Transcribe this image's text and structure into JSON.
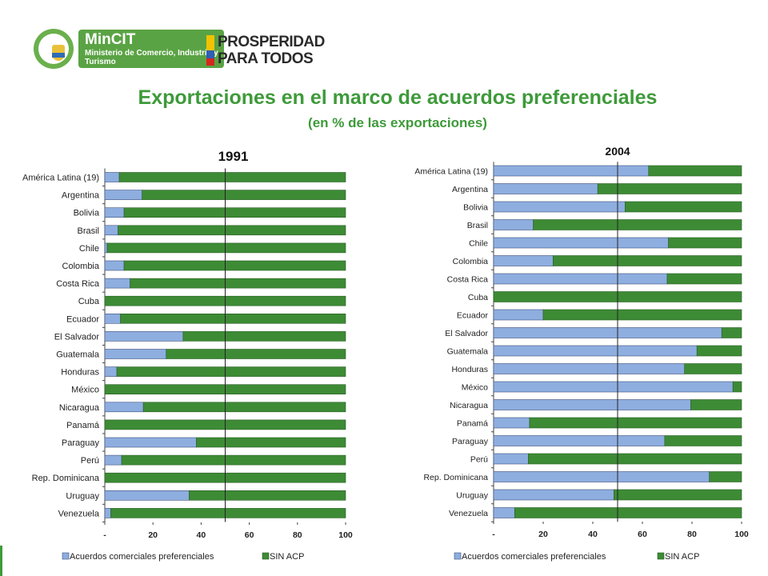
{
  "header": {
    "mincit_title": "MinCIT",
    "mincit_subtitle": "Ministerio de Comercio, Industria y Turismo",
    "prosperidad_line1": "PROSPERIDAD",
    "prosperidad_line2": "PARA TODOS"
  },
  "title": "Exportaciones en el marco de acuerdos preferenciales",
  "subtitle": "(en % de las exportaciones)",
  "colors": {
    "blue": "#8eaee0",
    "green": "#3d8b35",
    "title_green": "#3e9a3a"
  },
  "chart_data": [
    {
      "type": "bar",
      "orientation": "horizontal",
      "stacked": true,
      "title": "1991",
      "categories": [
        "América Latina (19)",
        "Argentina",
        "Bolivia",
        "Brasil",
        "Chile",
        "Colombia",
        "Costa Rica",
        "Cuba",
        "Ecuador",
        "El Salvador",
        "Guatemala",
        "Honduras",
        "México",
        "Nicaragua",
        "Panamá",
        "Paraguay",
        "Perú",
        "Rep. Dominicana",
        "Uruguay",
        "Venezuela"
      ],
      "series": [
        {
          "name": "Acuerdos comerciales preferenciales",
          "values": [
            6,
            15.5,
            8,
            5.5,
            1,
            8,
            10.5,
            0,
            6.5,
            32.5,
            25.5,
            5,
            0,
            16,
            0,
            38,
            7,
            0,
            35,
            2.5
          ]
        },
        {
          "name": "SIN ACP",
          "values": [
            94,
            84.5,
            92,
            94.5,
            99,
            92,
            89.5,
            100,
            93.5,
            67.5,
            74.5,
            95,
            100,
            84,
            100,
            62,
            93,
            100,
            65,
            97.5
          ]
        }
      ],
      "xlim": [
        0,
        100
      ],
      "xticks": [
        "-",
        "20",
        "40",
        "60",
        "80",
        "100"
      ],
      "grid": "vertical",
      "legend": "bottom"
    },
    {
      "type": "bar",
      "orientation": "horizontal",
      "stacked": true,
      "title": "2004",
      "categories": [
        "América Latina (19)",
        "Argentina",
        "Bolivia",
        "Brasil",
        "Chile",
        "Colombia",
        "Costa Rica",
        "Cuba",
        "Ecuador",
        "El Salvador",
        "Guatemala",
        "Honduras",
        "México",
        "Nicaragua",
        "Panamá",
        "Paraguay",
        "Perú",
        "Rep. Dominicana",
        "Uruguay",
        "Venezuela"
      ],
      "series": [
        {
          "name": "Acuerdos comerciales preferenciales",
          "values": [
            62.5,
            42,
            53,
            16,
            70.5,
            24,
            70,
            0,
            20,
            92,
            82,
            77,
            96.5,
            79.5,
            14.5,
            69,
            14,
            87,
            48.5,
            8.5
          ]
        },
        {
          "name": "SIN ACP",
          "values": [
            37.5,
            58,
            47,
            84,
            29.5,
            76,
            30,
            100,
            80,
            8,
            18,
            23,
            3.5,
            20.5,
            85.5,
            31,
            86,
            13,
            51.5,
            91.5
          ]
        }
      ],
      "xlim": [
        0,
        100
      ],
      "xticks": [
        "-",
        "20",
        "40",
        "60",
        "80",
        "100"
      ],
      "grid": "vertical",
      "legend": "bottom"
    }
  ]
}
